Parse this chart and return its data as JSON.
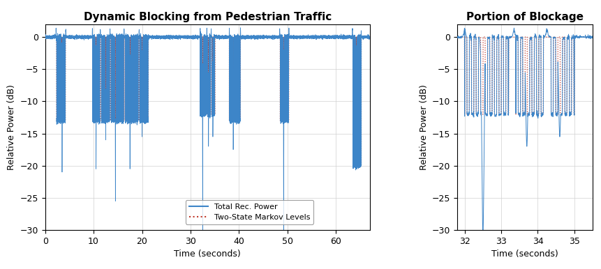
{
  "title_left": "Dynamic Blocking from Pedestrian Traffic",
  "title_right": "Portion of Blockage",
  "xlabel": "Time (seconds)",
  "ylabel": "Relative Power (dB)",
  "ylim_left": [
    -30,
    2
  ],
  "ylim_right": [
    -30,
    2
  ],
  "xlim_left": [
    0,
    67
  ],
  "xlim_right": [
    31.8,
    35.5
  ],
  "yticks_left": [
    0,
    -5,
    -10,
    -15,
    -20,
    -25,
    -30
  ],
  "yticks_right": [
    0,
    -5,
    -10,
    -15,
    -20,
    -25,
    -30
  ],
  "xticks_left": [
    0,
    10,
    20,
    30,
    40,
    50,
    60
  ],
  "xticks_right": [
    32,
    33,
    34,
    35
  ],
  "blue_color": "#3d85c8",
  "red_color": "#c0392b",
  "legend_entries": [
    "Total Rec. Power",
    "Two-State Markov Levels"
  ],
  "background_color": "#ffffff",
  "grid_color": "#d0d0d0",
  "title_fontsize": 11,
  "axis_fontsize": 9,
  "tick_fontsize": 9,
  "blockage_events_left": [
    {
      "start": 2.3,
      "end": 4.2,
      "level": -13,
      "spike": -21.0,
      "spike_t": 3.5
    },
    {
      "start": 9.8,
      "end": 11.3,
      "level": -13,
      "spike": -20.5,
      "spike_t": 10.5
    },
    {
      "start": 11.6,
      "end": 13.3,
      "level": -13,
      "spike": -16.0,
      "spike_t": 12.5
    },
    {
      "start": 13.6,
      "end": 16.2,
      "level": -13,
      "spike": -25.5,
      "spike_t": 14.5
    },
    {
      "start": 16.5,
      "end": 19.2,
      "level": -13,
      "spike": -20.5,
      "spike_t": 17.5
    },
    {
      "start": 19.5,
      "end": 21.3,
      "level": -13,
      "spike": -15.5,
      "spike_t": 20.0
    },
    {
      "start": 32.0,
      "end": 33.2,
      "level": -12,
      "spike": -30.5,
      "spike_t": 32.5
    },
    {
      "start": 33.4,
      "end": 34.2,
      "level": -12,
      "spike": -17.0,
      "spike_t": 33.7
    },
    {
      "start": 34.3,
      "end": 35.0,
      "level": -12,
      "spike": -15.5,
      "spike_t": 34.6
    },
    {
      "start": 38.0,
      "end": 40.3,
      "level": -13,
      "spike": -17.5,
      "spike_t": 38.8
    },
    {
      "start": 48.5,
      "end": 50.3,
      "level": -13,
      "spike": -30.0,
      "spike_t": 49.2
    },
    {
      "start": 63.5,
      "end": 65.2,
      "level": -20,
      "spike": -20.5,
      "spike_t": 64.2
    }
  ],
  "markov_toggle_freq": 8.0,
  "dt": 0.005
}
